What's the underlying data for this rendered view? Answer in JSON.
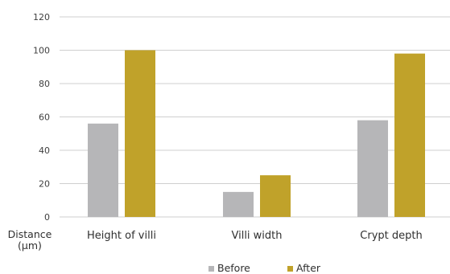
{
  "chart_data": {
    "type": "bar",
    "categories": [
      "Height of villi",
      "Villi width",
      "Crypt depth"
    ],
    "series": [
      {
        "name": "Before",
        "values": [
          56,
          15,
          58
        ],
        "color": "#b6b6b8"
      },
      {
        "name": "After",
        "values": [
          100,
          25,
          98
        ],
        "color": "#c0a22a"
      }
    ],
    "ylabel_lines": [
      "Distance",
      "(μm)"
    ],
    "ylim": [
      0,
      120
    ],
    "yticks": [
      0,
      20,
      40,
      60,
      80,
      100,
      120
    ],
    "grid": true,
    "legend": "bottom-center"
  }
}
